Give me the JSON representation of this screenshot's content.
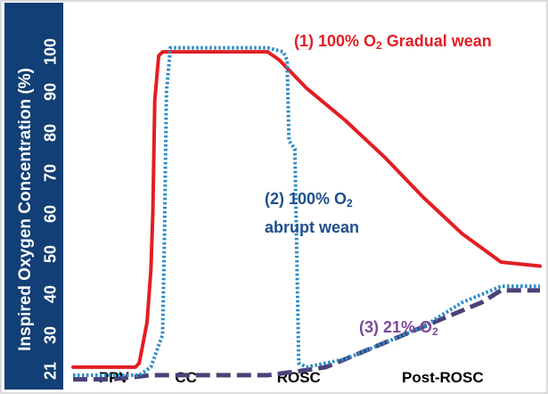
{
  "chart_data": {
    "type": "line",
    "title": "",
    "ylabel": "Inspired Oxygen Concentration (%)",
    "xlabel": "",
    "ylim": [
      18,
      104
    ],
    "xlim": [
      0,
      12
    ],
    "yticks": [
      "21",
      "30",
      "40",
      "50",
      "60",
      "70",
      "80",
      "90",
      "100"
    ],
    "ytick_values": [
      21,
      30,
      40,
      50,
      60,
      70,
      80,
      90,
      100
    ],
    "categories": [
      {
        "label": "PPV",
        "x": 1.05
      },
      {
        "label": "CC",
        "x": 2.9
      },
      {
        "label": "ROSC",
        "x": 5.8
      },
      {
        "label": "Post-ROSC",
        "x": 9.5
      }
    ],
    "series": [
      {
        "name": "(1) 100% O2 Gradual wean",
        "label_main": "(1) 100% O",
        "label_sub": "2",
        "label_tail": " Gradual wean",
        "color": "#e31e24",
        "style": "solid",
        "x": [
          0,
          1.6,
          1.7,
          1.9,
          2.0,
          2.05,
          2.1,
          2.2,
          2.3,
          2.5,
          3.0,
          4.0,
          5.0,
          5.3,
          6.0,
          7.0,
          8.0,
          9.0,
          10.0,
          11.0,
          12.0
        ],
        "y": [
          22,
          22,
          23,
          33,
          46,
          60,
          88,
          99,
          100,
          100,
          100,
          100,
          100,
          98,
          91,
          83,
          74,
          64,
          55,
          48,
          47
        ]
      },
      {
        "name": "(2) 100% O2 abrupt wean",
        "label_main": "(2) 100% O",
        "label_sub": "2",
        "label_line2": "abrupt wean",
        "color": "#2a8ac8",
        "style": "dotted",
        "x": [
          0,
          1.7,
          2.0,
          2.3,
          2.35,
          2.4,
          2.5,
          3.0,
          4.0,
          5.0,
          5.4,
          5.5,
          5.55,
          5.7,
          5.75,
          5.8,
          6.0,
          7.0,
          8.0,
          9.0,
          10.0,
          11.0,
          12.0
        ],
        "y": [
          20,
          20,
          22,
          30,
          55,
          90,
          101,
          101,
          101,
          101,
          100,
          98,
          78,
          76,
          50,
          23,
          22,
          24,
          28,
          32,
          38,
          42,
          42
        ]
      },
      {
        "name": "(3) 21% O2",
        "label_main": "(3) 21% O",
        "label_sub": "2",
        "color": "#4a4278",
        "style": "dashed",
        "x": [
          0,
          1.0,
          2.0,
          3.0,
          4.0,
          5.0,
          5.8,
          6.5,
          7.0,
          8.0,
          9.0,
          10.0,
          10.5,
          11.0,
          12.0
        ],
        "y": [
          19,
          19,
          20,
          20,
          20,
          20,
          21,
          22,
          24,
          28,
          32,
          36,
          38,
          41,
          41
        ]
      }
    ],
    "annotation_colors": {
      "s1": "#e31e24",
      "s2": "#1e4f8a",
      "s3": "#7b4a9a"
    }
  }
}
